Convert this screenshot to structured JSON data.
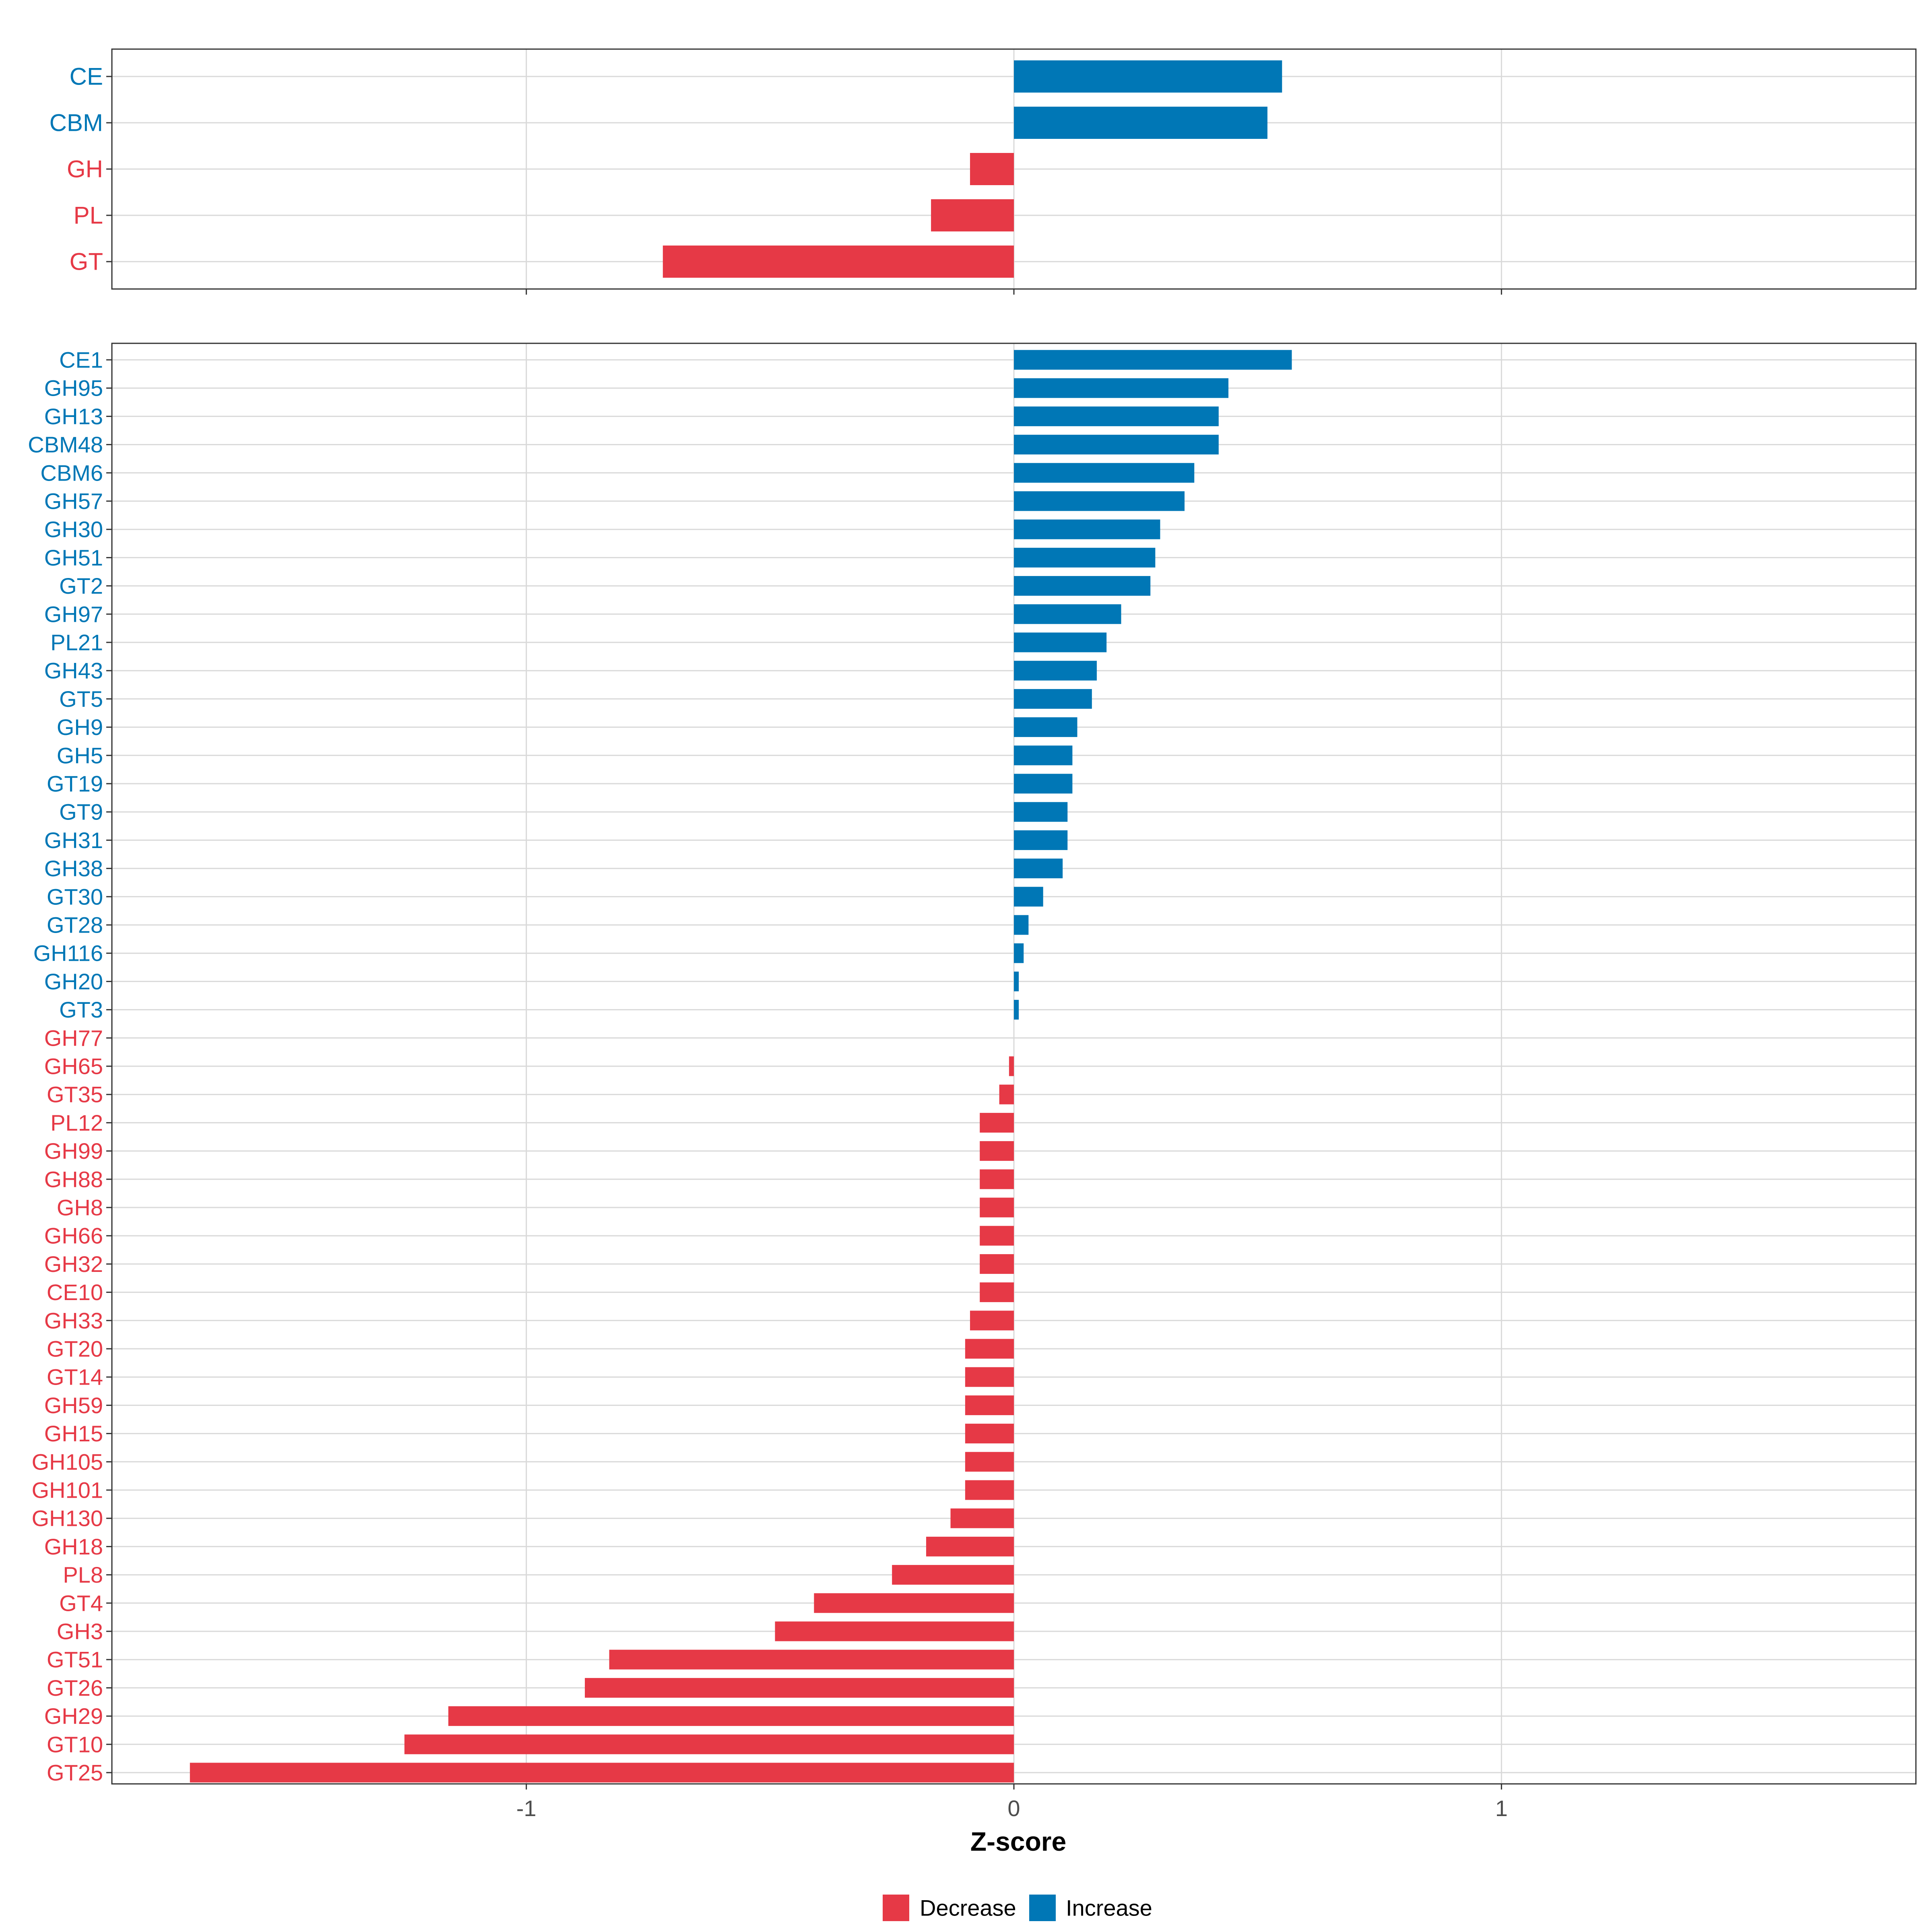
{
  "chart_data": [
    {
      "type": "bar",
      "orientation": "horizontal",
      "panel": "top",
      "xlabel": "",
      "xlim": [
        -1.85,
        1.85
      ],
      "categories": [
        "CE",
        "CBM",
        "GH",
        "PL",
        "GT"
      ],
      "values": [
        0.55,
        0.52,
        -0.09,
        -0.17,
        -0.72
      ],
      "direction": [
        "Increase",
        "Increase",
        "Decrease",
        "Decrease",
        "Decrease"
      ]
    },
    {
      "type": "bar",
      "orientation": "horizontal",
      "panel": "bottom",
      "xlabel": "Z-score",
      "xlim": [
        -1.85,
        1.85
      ],
      "xticks": [
        -1,
        0,
        1
      ],
      "xtick_labels": [
        "-1",
        "0",
        "1"
      ],
      "categories": [
        "CE1",
        "GH95",
        "GH13",
        "CBM48",
        "CBM6",
        "GH57",
        "GH30",
        "GH51",
        "GT2",
        "GH97",
        "PL21",
        "GH43",
        "GT5",
        "GH9",
        "GH5",
        "GT19",
        "GT9",
        "GH31",
        "GH38",
        "GT30",
        "GT28",
        "GH116",
        "GH20",
        "GT3",
        "GH77",
        "GH65",
        "GT35",
        "PL12",
        "GH99",
        "GH88",
        "GH8",
        "GH66",
        "GH32",
        "CE10",
        "GH33",
        "GT20",
        "GT14",
        "GH59",
        "GH15",
        "GH105",
        "GH101",
        "GH130",
        "GH18",
        "PL8",
        "GT4",
        "GH3",
        "GT51",
        "GT26",
        "GH29",
        "GT10",
        "GT25"
      ],
      "values": [
        0.57,
        0.44,
        0.42,
        0.42,
        0.37,
        0.35,
        0.3,
        0.29,
        0.28,
        0.22,
        0.19,
        0.17,
        0.16,
        0.13,
        0.12,
        0.12,
        0.11,
        0.11,
        0.1,
        0.06,
        0.03,
        0.02,
        0.01,
        0.01,
        0.0,
        -0.01,
        -0.03,
        -0.07,
        -0.07,
        -0.07,
        -0.07,
        -0.07,
        -0.07,
        -0.07,
        -0.09,
        -0.1,
        -0.1,
        -0.1,
        -0.1,
        -0.1,
        -0.1,
        -0.13,
        -0.18,
        -0.25,
        -0.41,
        -0.49,
        -0.83,
        -0.88,
        -1.16,
        -1.25,
        -1.69
      ],
      "direction": [
        "Increase",
        "Increase",
        "Increase",
        "Increase",
        "Increase",
        "Increase",
        "Increase",
        "Increase",
        "Increase",
        "Increase",
        "Increase",
        "Increase",
        "Increase",
        "Increase",
        "Increase",
        "Increase",
        "Increase",
        "Increase",
        "Increase",
        "Increase",
        "Increase",
        "Increase",
        "Increase",
        "Increase",
        "Decrease",
        "Decrease",
        "Decrease",
        "Decrease",
        "Decrease",
        "Decrease",
        "Decrease",
        "Decrease",
        "Decrease",
        "Decrease",
        "Decrease",
        "Decrease",
        "Decrease",
        "Decrease",
        "Decrease",
        "Decrease",
        "Decrease",
        "Decrease",
        "Decrease",
        "Decrease",
        "Decrease",
        "Decrease",
        "Decrease",
        "Decrease",
        "Decrease",
        "Decrease",
        "Decrease"
      ]
    }
  ],
  "legend": {
    "position": "bottom",
    "items": [
      {
        "label": "Decrease",
        "key": "Decrease",
        "color": "#E63946"
      },
      {
        "label": "Increase",
        "key": "Increase",
        "color": "#0077B6"
      }
    ]
  },
  "colors": {
    "Increase": "#0077B6",
    "Decrease": "#E63946",
    "grid": "#D9D9D9",
    "axis_text": "#4D4D4D",
    "panel_border": "#333333"
  }
}
